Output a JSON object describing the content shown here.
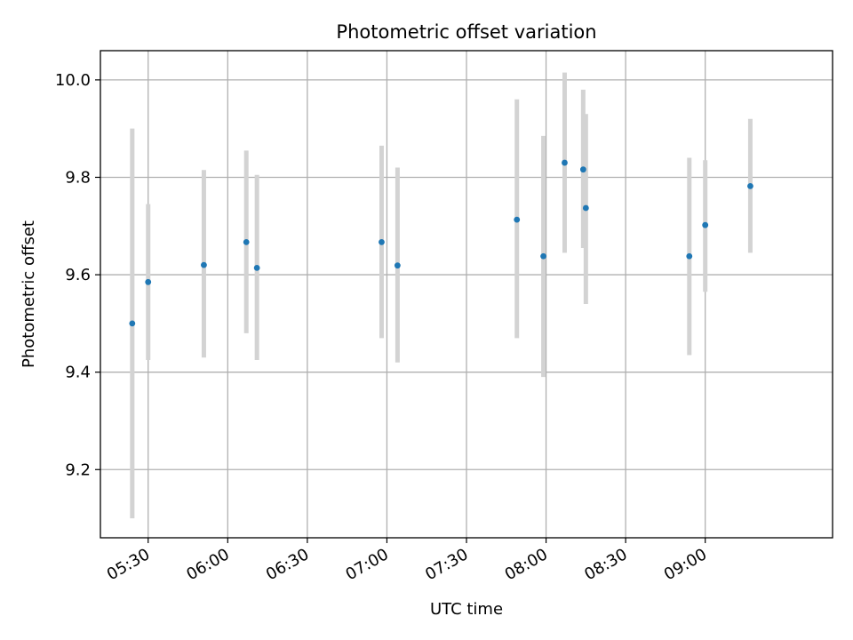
{
  "chart_data": {
    "type": "scatter",
    "title": "Photometric offset variation",
    "xlabel": "UTC time",
    "ylabel": "Photometric offset",
    "x_is_time": true,
    "xlim": [
      "05:12",
      "09:48"
    ],
    "ylim": [
      9.06,
      10.06
    ],
    "x_ticks": [
      "05:30",
      "06:00",
      "06:30",
      "07:00",
      "07:30",
      "08:00",
      "08:30",
      "09:00"
    ],
    "y_ticks": [
      "9.2",
      "9.4",
      "9.6",
      "9.8",
      "10.0"
    ],
    "grid": true,
    "colors": {
      "point": "#1f77b4",
      "errorbar": "#d3d3d3",
      "grid": "#b0b0b0",
      "axes": "#000000"
    },
    "points": [
      {
        "x": "05:24",
        "y": 9.5,
        "ylow": 9.1,
        "yhigh": 9.9
      },
      {
        "x": "05:30",
        "y": 9.585,
        "ylow": 9.425,
        "yhigh": 9.745
      },
      {
        "x": "05:51",
        "y": 9.62,
        "ylow": 9.43,
        "yhigh": 9.815
      },
      {
        "x": "06:07",
        "y": 9.667,
        "ylow": 9.48,
        "yhigh": 9.855
      },
      {
        "x": "06:11",
        "y": 9.614,
        "ylow": 9.425,
        "yhigh": 9.805
      },
      {
        "x": "06:58",
        "y": 9.667,
        "ylow": 9.47,
        "yhigh": 9.865
      },
      {
        "x": "07:04",
        "y": 9.619,
        "ylow": 9.42,
        "yhigh": 9.82
      },
      {
        "x": "07:49",
        "y": 9.713,
        "ylow": 9.47,
        "yhigh": 9.96
      },
      {
        "x": "07:59",
        "y": 9.638,
        "ylow": 9.39,
        "yhigh": 9.885
      },
      {
        "x": "08:07",
        "y": 9.83,
        "ylow": 9.645,
        "yhigh": 10.015
      },
      {
        "x": "08:14",
        "y": 9.816,
        "ylow": 9.655,
        "yhigh": 9.98
      },
      {
        "x": "08:15",
        "y": 9.737,
        "ylow": 9.54,
        "yhigh": 9.93
      },
      {
        "x": "08:54",
        "y": 9.638,
        "ylow": 9.435,
        "yhigh": 9.84
      },
      {
        "x": "09:00",
        "y": 9.702,
        "ylow": 9.565,
        "yhigh": 9.835
      },
      {
        "x": "09:17",
        "y": 9.782,
        "ylow": 9.645,
        "yhigh": 9.92
      }
    ]
  }
}
